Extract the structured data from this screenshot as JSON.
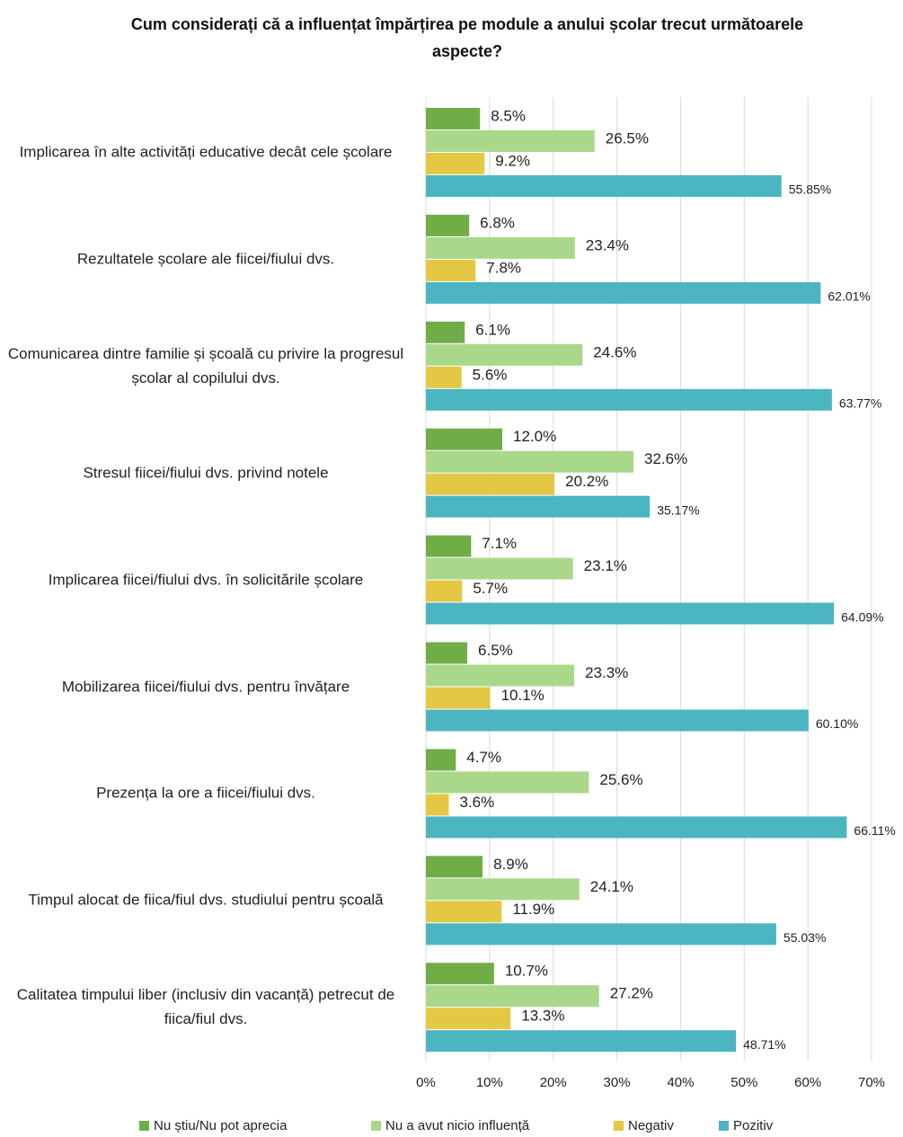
{
  "chart_data": {
    "type": "hbar",
    "title": "Cum considerați că a influențat împărțirea  pe module a anului școlar trecut următoarele aspecte?",
    "categories": [
      "Implicarea în alte activități educative decât cele școlare",
      "Rezultatele școlare ale fiicei/fiului dvs.",
      "Comunicarea dintre familie și școală cu privire la progresul școlar al copilului dvs.",
      "Stresul fiicei/fiului dvs. privind notele",
      "Implicarea fiicei/fiului dvs. în solicitările școlare",
      "Mobilizarea fiicei/fiului dvs. pentru învățare",
      "Prezența la ore a fiicei/fiului dvs.",
      "Timpul alocat de fiica/fiul dvs. studiului pentru școală",
      "Calitatea timpului liber (inclusiv din vacanță) petrecut de fiica/fiul dvs."
    ],
    "series": [
      {
        "name": "Nu știu/Nu pot aprecia",
        "color": "#70ad47",
        "values": [
          8.5,
          6.8,
          6.1,
          12.0,
          7.1,
          6.5,
          4.7,
          8.9,
          10.7
        ],
        "value_labels": [
          "8.5%",
          "6.8%",
          "6.1%",
          "12.0%",
          "7.1%",
          "6.5%",
          "4.7%",
          "8.9%",
          "10.7%"
        ]
      },
      {
        "name": "Nu a avut nicio influență",
        "color": "#a9d88a",
        "values": [
          26.5,
          23.4,
          24.6,
          32.6,
          23.1,
          23.3,
          25.6,
          24.1,
          27.2
        ],
        "value_labels": [
          "26.5%",
          "23.4%",
          "24.6%",
          "32.6%",
          "23.1%",
          "23.3%",
          "25.6%",
          "24.1%",
          "27.2%"
        ]
      },
      {
        "name": "Negativ",
        "color": "#e4c843",
        "values": [
          9.2,
          7.8,
          5.6,
          20.2,
          5.7,
          10.1,
          3.6,
          11.9,
          13.3
        ],
        "value_labels": [
          "9.2%",
          "7.8%",
          "5.6%",
          "20.2%",
          "5.7%",
          "10.1%",
          "3.6%",
          "11.9%",
          "13.3%"
        ]
      },
      {
        "name": "Pozitiv",
        "color": "#4bb5c1",
        "values": [
          55.85,
          62.01,
          63.77,
          35.17,
          64.09,
          60.1,
          66.11,
          55.03,
          48.71
        ],
        "value_labels": [
          "55.85%",
          "62.01%",
          "63.77%",
          "35.17%",
          "64.09%",
          "60.10%",
          "66.11%",
          "55.03%",
          "48.71%"
        ]
      }
    ],
    "xlim": [
      0,
      70
    ],
    "xticks": [
      {
        "value": 0,
        "label": "0%"
      },
      {
        "value": 10,
        "label": "10%"
      },
      {
        "value": 20,
        "label": "20%"
      },
      {
        "value": 30,
        "label": "30%"
      },
      {
        "value": 40,
        "label": "40%"
      },
      {
        "value": 50,
        "label": "50%"
      },
      {
        "value": 60,
        "label": "60%"
      },
      {
        "value": 70,
        "label": "70%"
      }
    ],
    "grid": true,
    "legend": "bottom"
  }
}
